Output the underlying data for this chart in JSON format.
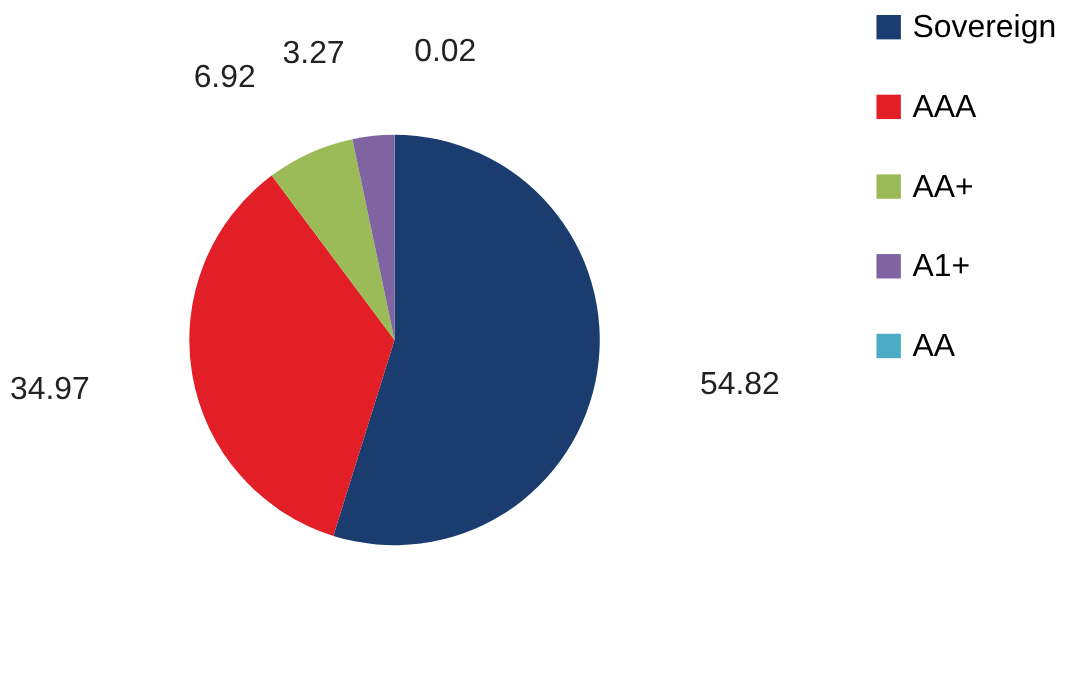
{
  "chart_data": {
    "type": "pie",
    "categories": [
      "Sovereign",
      "AAA",
      "AA+",
      "A1+",
      "AA"
    ],
    "values": [
      54.82,
      34.97,
      6.92,
      3.27,
      0.02
    ],
    "colors": [
      "#1b3c6e",
      "#e21f26",
      "#9bbb59",
      "#8064a2",
      "#4bacc6"
    ],
    "data_labels": true,
    "legend": "right"
  }
}
